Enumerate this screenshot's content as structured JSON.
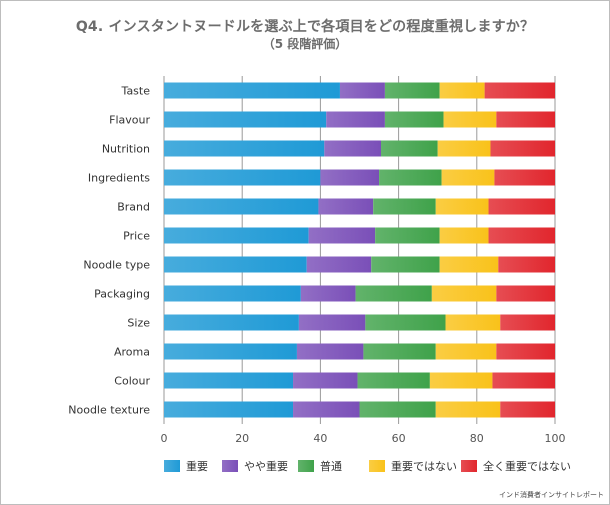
{
  "chart_data": {
    "type": "bar",
    "orientation": "horizontal",
    "stacked": true,
    "title": "Q4. インスタントヌードルを選ぶ上で各項目をどの程度重視しますか？",
    "subtitle": "（5 段階評価）",
    "categories": [
      "Taste",
      "Flavour",
      "Nutrition",
      "Ingredients",
      "Brand",
      "Price",
      "Noodle type",
      "Packaging",
      "Size",
      "Aroma",
      "Colour",
      "Noodle texture"
    ],
    "series": [
      {
        "name": "重要",
        "color": "#1f9ad6",
        "values": [
          45,
          41.5,
          41,
          40,
          39.5,
          37,
          36.5,
          35,
          34.5,
          34,
          33,
          33
        ]
      },
      {
        "name": "やや重要",
        "color": "#7a4fb8",
        "values": [
          11.5,
          15,
          14.5,
          15,
          14,
          17,
          16.5,
          14,
          17,
          17,
          16.5,
          17
        ]
      },
      {
        "name": "普通",
        "color": "#3fa24a",
        "values": [
          14,
          15,
          14.5,
          16,
          16,
          16.5,
          17.5,
          19.5,
          20.5,
          18.5,
          18.5,
          19.5
        ]
      },
      {
        "name": "重要ではない",
        "color": "#f9c21a",
        "values": [
          11.5,
          13.5,
          13.5,
          13.5,
          13.5,
          12.5,
          15,
          16.5,
          14,
          15.5,
          16,
          16.5
        ]
      },
      {
        "name": "全く重要ではない",
        "color": "#e1262d",
        "values": [
          18,
          15,
          16.5,
          15.5,
          17,
          17,
          14.5,
          15,
          14,
          15,
          16,
          14
        ]
      }
    ],
    "xlim": [
      0,
      100
    ],
    "xticks": [
      0,
      20,
      40,
      60,
      80,
      100
    ],
    "grid": true,
    "legend": "bottom"
  },
  "source": "インド消費者インサイトレポート"
}
